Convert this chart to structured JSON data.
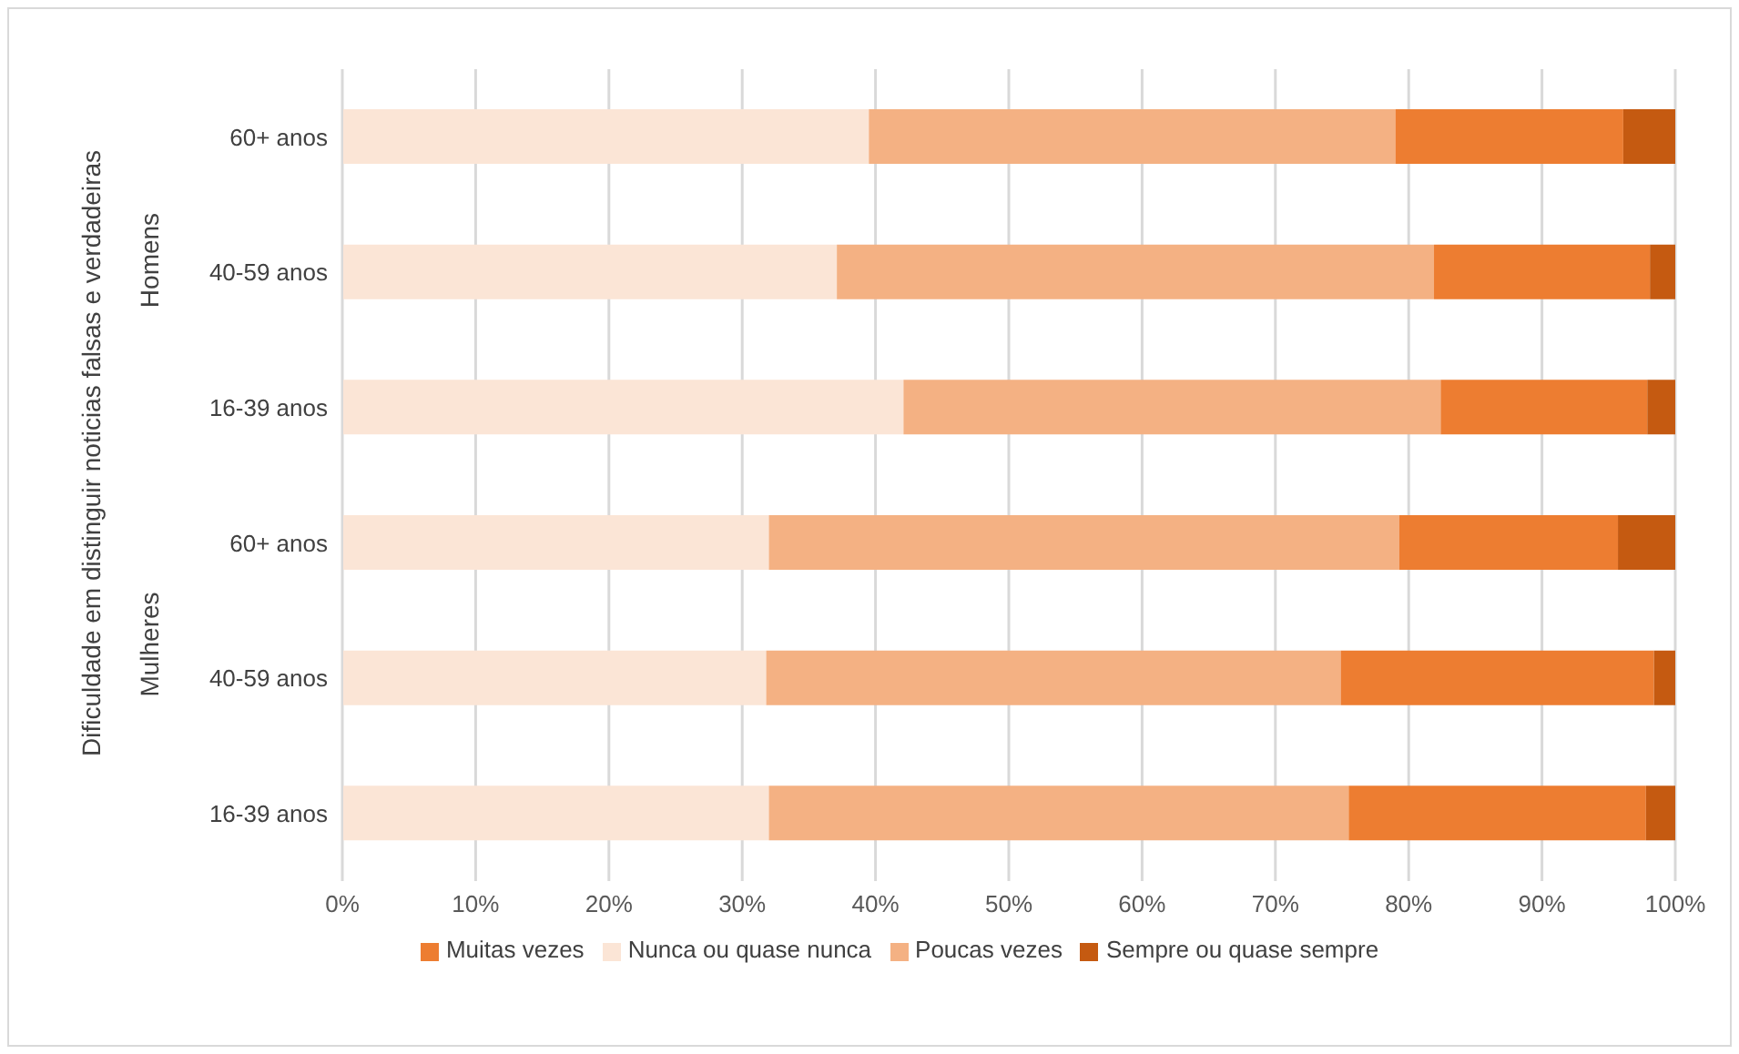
{
  "chart_data": {
    "type": "bar",
    "orientation": "horizontal",
    "stacked": true,
    "ylabel": "Dificuldade em distinguir noticias falsas e verdadeiras",
    "annotations": [
      "Homens",
      "Mulheres"
    ],
    "categories": [
      "60+ anos",
      "40-59 anos",
      "16-39 anos",
      "60+ anos",
      "40-59 anos",
      "16-39 anos"
    ],
    "series": [
      {
        "name": "Nunca ou quase nunca",
        "color": "#fbe5d6",
        "values": [
          39.5,
          37.1,
          42.1,
          32.0,
          31.8,
          32.0
        ]
      },
      {
        "name": "Poucas vezes",
        "color": "#f4b183",
        "values": [
          39.5,
          44.8,
          40.3,
          47.3,
          43.1,
          43.5
        ]
      },
      {
        "name": "Muitas vezes",
        "color": "#ed7d31",
        "values": [
          17.1,
          16.2,
          15.5,
          16.4,
          23.5,
          22.3
        ]
      },
      {
        "name": "Sempre ou quase sempre",
        "color": "#c55a11",
        "values": [
          3.9,
          1.9,
          2.1,
          4.3,
          1.6,
          2.2
        ]
      }
    ],
    "xlim": [
      0,
      100
    ],
    "xticks": [
      {
        "value": 0,
        "label": "0%"
      },
      {
        "value": 10,
        "label": "10%"
      },
      {
        "value": 20,
        "label": "20%"
      },
      {
        "value": 30,
        "label": "30%"
      },
      {
        "value": 40,
        "label": "40%"
      },
      {
        "value": 50,
        "label": "50%"
      },
      {
        "value": 60,
        "label": "60%"
      },
      {
        "value": 70,
        "label": "70%"
      },
      {
        "value": 80,
        "label": "80%"
      },
      {
        "value": 90,
        "label": "90%"
      },
      {
        "value": 100,
        "label": "100%"
      }
    ],
    "grid": "x",
    "legend": "bottom"
  }
}
